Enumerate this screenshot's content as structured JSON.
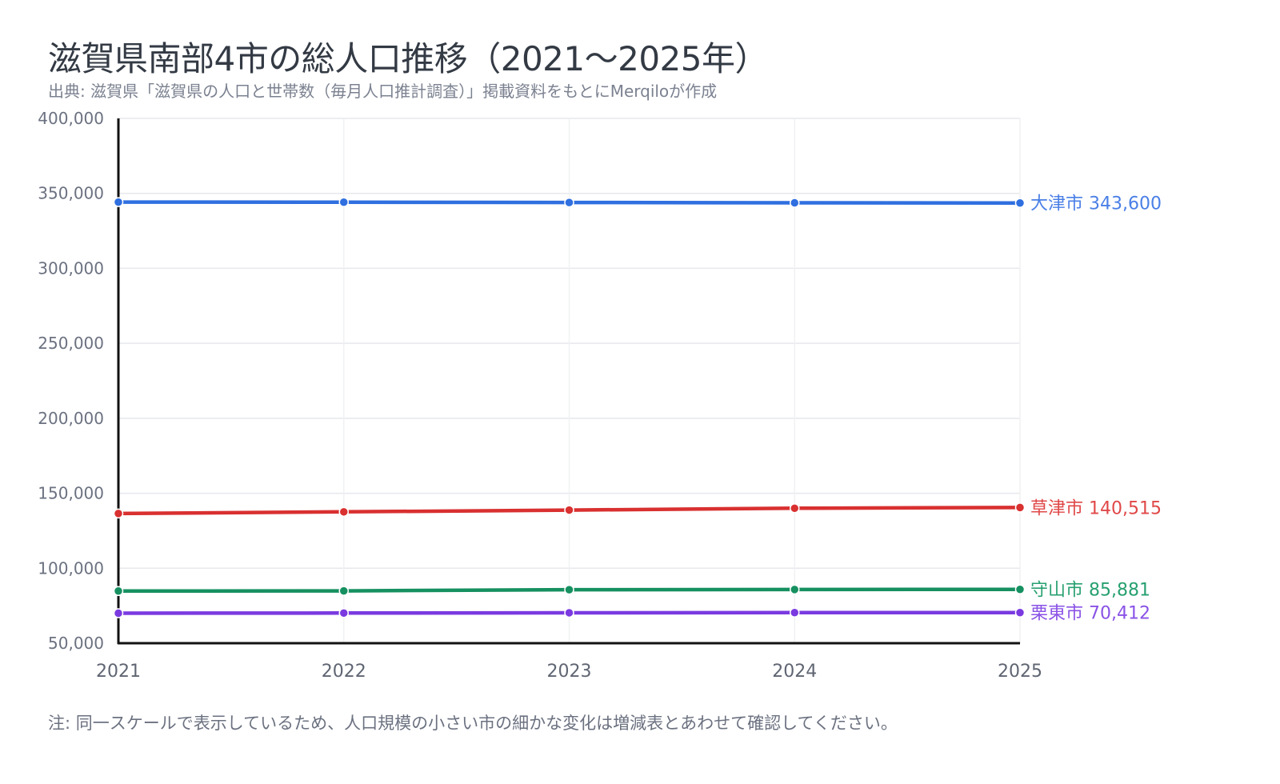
{
  "title": "滋賀県南部4市の総人口推移（2021〜2025年）",
  "subtitle": "出典: 滋賀県「滋賀県の人口と世帯数（毎月人口推計調査）」掲載資料をもとにMerqiloが作成",
  "note": "注: 同一スケールで表示しているため、人口規模の小さい市の細かな変化は増減表とあわせて確認してください。",
  "chart_data": {
    "type": "line",
    "title": "滋賀県南部4市の総人口推移（2021〜2025年）",
    "x": [
      2021,
      2022,
      2023,
      2024,
      2025
    ],
    "x_tick_labels": [
      "2021",
      "2022",
      "2023",
      "2024",
      "2025"
    ],
    "ylim": [
      50000,
      400000
    ],
    "y_ticks": [
      50000,
      100000,
      150000,
      200000,
      250000,
      300000,
      350000,
      400000
    ],
    "y_tick_labels": [
      "50,000",
      "100,000",
      "150,000",
      "200,000",
      "250,000",
      "300,000",
      "350,000",
      "400,000"
    ],
    "grid": true,
    "legend": "end-of-line labels",
    "series": [
      {
        "name": "大津市",
        "color": "#2f6fe0",
        "label_color": "#4a7fe6",
        "end_label": "大津市 343,600",
        "values": [
          344200,
          344100,
          343900,
          343700,
          343600
        ]
      },
      {
        "name": "草津市",
        "color": "#d93030",
        "label_color": "#e04848",
        "end_label": "草津市 140,515",
        "values": [
          136500,
          137600,
          138800,
          140000,
          140515
        ]
      },
      {
        "name": "守山市",
        "color": "#169060",
        "label_color": "#27a070",
        "end_label": "守山市 85,881",
        "values": [
          84800,
          84900,
          85700,
          85800,
          85881
        ]
      },
      {
        "name": "栗東市",
        "color": "#7a3ae0",
        "label_color": "#8a52e6",
        "end_label": "栗東市 70,412",
        "values": [
          70000,
          70100,
          70300,
          70400,
          70412
        ]
      }
    ]
  }
}
